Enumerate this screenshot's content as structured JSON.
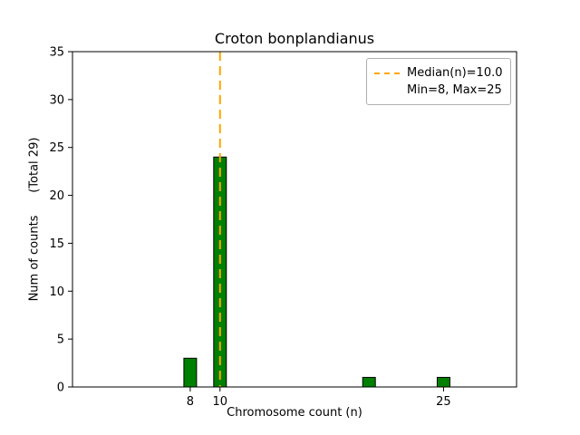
{
  "chart_data": {
    "type": "bar",
    "title": "Croton bonplandianus",
    "xlabel": "Chromosome count (n)",
    "ylabel": "Num of counts      (Total 29)",
    "x": [
      8,
      10,
      20,
      25
    ],
    "values": [
      3,
      24,
      1,
      1
    ],
    "total_counts": 29,
    "bar_width_units": 0.85,
    "bar_color": "#008000",
    "bar_edge_color": "#000000",
    "xlim": [
      0.1,
      29.9
    ],
    "ylim": [
      0,
      35
    ],
    "yticks": [
      0,
      5,
      10,
      15,
      20,
      25,
      30,
      35
    ],
    "xticks": [
      8,
      10,
      25
    ],
    "grid": false,
    "median_line": {
      "x": 10,
      "color": "#FFA500",
      "style": "dashed"
    },
    "legend": {
      "position": "upper right",
      "entries": [
        {
          "marker": "dashed-line",
          "color": "#FFA500",
          "label": "Median(n)=10.0"
        },
        {
          "marker": "none",
          "color": "",
          "label": "Min=8, Max=25"
        }
      ]
    }
  }
}
